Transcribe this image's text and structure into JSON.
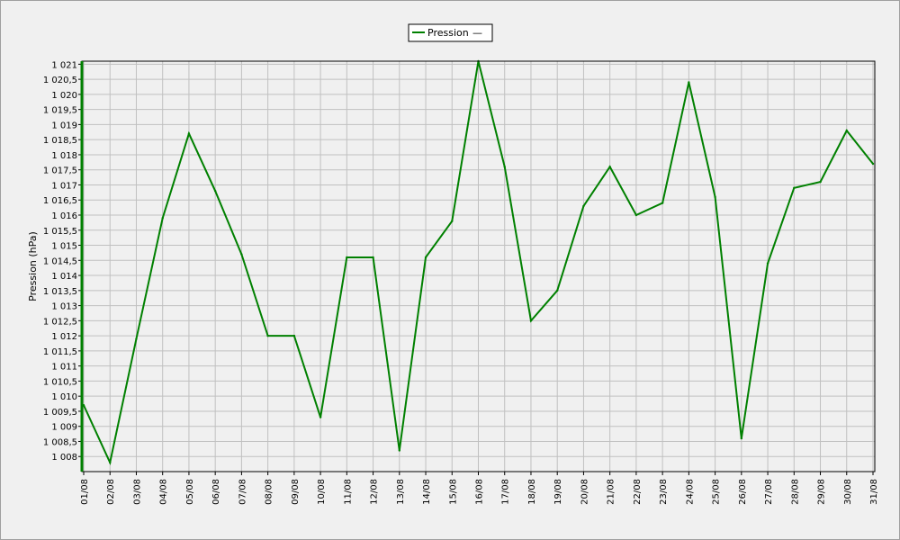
{
  "chart_data": {
    "type": "line",
    "title": "",
    "xlabel": "",
    "ylabel": "Pression (hPa)",
    "ylim": [
      1007.5,
      1021.1
    ],
    "grid": true,
    "legend_position": "top-center",
    "legend_suffix": "—",
    "colors": {
      "series": "#008000",
      "grid": "#c0c0c0",
      "plot_bg": "#f0f0f0",
      "axis": "#000000"
    },
    "y_ticks": [
      1008,
      1008.5,
      1009,
      1009.5,
      1010,
      1010.5,
      1011,
      1011.5,
      1012,
      1012.5,
      1013,
      1013.5,
      1014,
      1014.5,
      1015,
      1015.5,
      1016,
      1016.5,
      1017,
      1017.5,
      1018,
      1018.5,
      1019,
      1019.5,
      1020,
      1020.5,
      1021
    ],
    "y_tick_labels": [
      "1 008",
      "1 008,5",
      "1 009",
      "1 009,5",
      "1 010",
      "1 010,5",
      "1 011",
      "1 011,5",
      "1 012",
      "1 012,5",
      "1 013",
      "1 013,5",
      "1 014",
      "1 014,5",
      "1 015",
      "1 015,5",
      "1 016",
      "1 016,5",
      "1 017",
      "1 017,5",
      "1 018",
      "1 018,5",
      "1 019",
      "1 019,5",
      "1 020",
      "1 020,5",
      "1 021"
    ],
    "categories": [
      "01/08",
      "02/08",
      "03/08",
      "04/08",
      "05/08",
      "06/08",
      "07/08",
      "08/08",
      "09/08",
      "10/08",
      "11/08",
      "12/08",
      "13/08",
      "14/08",
      "15/08",
      "16/08",
      "17/08",
      "18/08",
      "19/08",
      "20/08",
      "21/08",
      "22/08",
      "23/08",
      "24/08",
      "25/08",
      "26/08",
      "27/08",
      "28/08",
      "29/08",
      "30/08",
      "31/08"
    ],
    "series": [
      {
        "name": "Pression",
        "values": [
          1009.7,
          1007.8,
          1011.9,
          1015.9,
          1018.7,
          1016.8,
          1014.7,
          1012.0,
          1012.0,
          1009.3,
          1014.6,
          1014.6,
          1008.2,
          1014.6,
          1015.8,
          1021.1,
          1017.6,
          1012.5,
          1013.5,
          1016.3,
          1017.6,
          1016.0,
          1016.4,
          1020.4,
          1016.6,
          1008.6,
          1014.4,
          1016.9,
          1017.1,
          1018.8,
          1017.7
        ]
      }
    ]
  }
}
